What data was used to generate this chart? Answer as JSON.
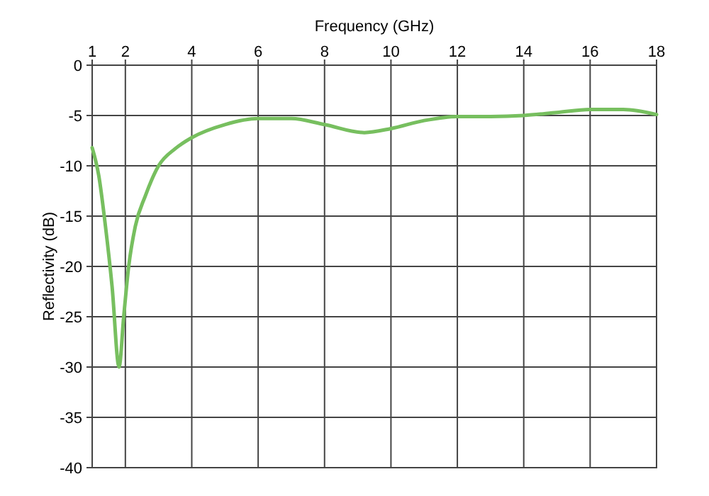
{
  "chart_data": {
    "type": "line",
    "xlabel": "Frequency (GHz)",
    "ylabel": "Reflectivity (dB)",
    "xlim": [
      1,
      18
    ],
    "xticks": [
      1,
      2,
      4,
      6,
      8,
      10,
      12,
      14,
      16,
      18
    ],
    "ylim": [
      -40,
      0
    ],
    "yticks": [
      0,
      -5,
      -10,
      -15,
      -20,
      -25,
      -30,
      -35,
      -40
    ],
    "grid": true,
    "series": [
      {
        "color": "#77bf5f",
        "x": [
          1,
          1.2,
          1.4,
          1.6,
          1.81,
          1.95,
          2.1,
          2.3,
          2.6,
          3,
          3.5,
          4,
          5,
          6,
          7,
          8,
          9.2,
          10,
          11,
          12,
          13,
          14,
          15,
          16,
          17,
          18
        ],
        "values": [
          -8.2,
          -11,
          -16,
          -22,
          -30,
          -25,
          -20,
          -16,
          -13,
          -10,
          -8.3,
          -7.2,
          -5.9,
          -5.3,
          -5.3,
          -5.9,
          -6.7,
          -6.3,
          -5.5,
          -5.1,
          -5.1,
          -5,
          -4.7,
          -4.4,
          -4.4,
          -4.9
        ]
      }
    ]
  }
}
